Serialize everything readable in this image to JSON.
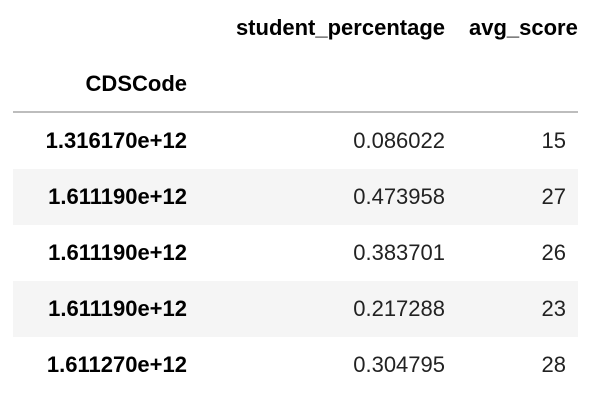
{
  "table": {
    "index_name": "CDSCode",
    "columns": [
      "student_percentage",
      "avg_score"
    ],
    "rows": [
      {
        "index": "1.316170e+12",
        "student_percentage": "0.086022",
        "avg_score": "15"
      },
      {
        "index": "1.611190e+12",
        "student_percentage": "0.473958",
        "avg_score": "27"
      },
      {
        "index": "1.611190e+12",
        "student_percentage": "0.383701",
        "avg_score": "26"
      },
      {
        "index": "1.611190e+12",
        "student_percentage": "0.217288",
        "avg_score": "23"
      },
      {
        "index": "1.611270e+12",
        "student_percentage": "0.304795",
        "avg_score": "28"
      }
    ]
  },
  "colors": {
    "header_rule": "#bdbdbd",
    "stripe": "#f5f5f5",
    "background": "#ffffff"
  }
}
